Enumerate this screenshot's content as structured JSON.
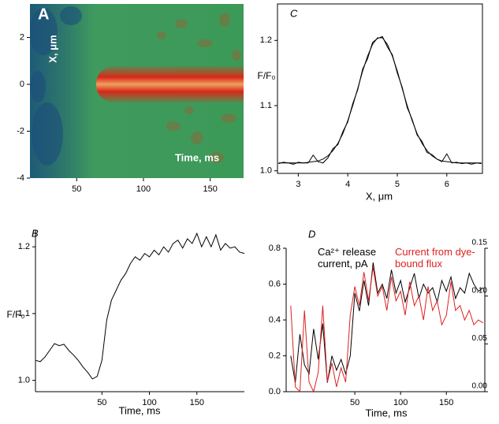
{
  "chart_data": [
    {
      "type": "heatmap",
      "panel_label": "A",
      "xlabel": "Time, ms",
      "ylabel": "X, μm",
      "xlim": [
        15,
        175
      ],
      "ylim": [
        -4,
        3.43
      ],
      "xticks": [
        50,
        100,
        150
      ],
      "yticks": [
        -4,
        -2,
        0,
        2
      ]
    },
    {
      "type": "line",
      "panel_label": "B",
      "xlabel": "Time, ms",
      "ylabel": "F/F₀",
      "color": "#000000",
      "x": [
        -20,
        -15,
        -10,
        -5,
        0,
        5,
        10,
        15,
        20,
        25,
        30,
        35,
        40,
        45,
        50,
        55,
        60,
        65,
        70,
        75,
        80,
        85,
        90,
        95,
        100,
        105,
        110,
        115,
        120,
        125,
        130,
        135,
        140,
        145,
        150,
        155,
        160,
        165,
        170,
        175,
        180,
        185,
        190,
        195,
        200
      ],
      "values": [
        1.03,
        1.028,
        1.035,
        1.045,
        1.055,
        1.052,
        1.054,
        1.045,
        1.038,
        1.03,
        1.02,
        1.012,
        1.002,
        1.006,
        1.03,
        1.09,
        1.12,
        1.135,
        1.15,
        1.16,
        1.175,
        1.185,
        1.18,
        1.19,
        1.185,
        1.195,
        1.188,
        1.2,
        1.192,
        1.205,
        1.21,
        1.198,
        1.212,
        1.205,
        1.22,
        1.2,
        1.215,
        1.2,
        1.218,
        1.195,
        1.205,
        1.198,
        1.2,
        1.192,
        1.19
      ],
      "xlim": [
        -20,
        200
      ],
      "ylim": [
        0.983,
        1.225
      ],
      "xticks": [
        50,
        100,
        150
      ],
      "yticks": [
        {
          "value": 1,
          "label": "1.0"
        },
        1.1,
        1.2
      ]
    },
    {
      "type": "line",
      "panel_label": "C",
      "xlabel": "X, μm",
      "ylabel": "F/F₀",
      "x": [
        2.6,
        2.7,
        2.8,
        2.9,
        3.0,
        3.1,
        3.2,
        3.3,
        3.4,
        3.5,
        3.6,
        3.7,
        3.8,
        3.9,
        4.0,
        4.1,
        4.2,
        4.3,
        4.4,
        4.5,
        4.6,
        4.7,
        4.8,
        4.9,
        5.0,
        5.1,
        5.2,
        5.3,
        5.4,
        5.5,
        5.6,
        5.7,
        5.8,
        5.9,
        6.0,
        6.1,
        6.2,
        6.3,
        6.4,
        6.5,
        6.6,
        6.7
      ],
      "series": [
        {
          "color": "#000000",
          "values": [
            1.012,
            1.012,
            1.012,
            1.012,
            1.012,
            1.012,
            1.013,
            1.014,
            1.015,
            1.018,
            1.023,
            1.031,
            1.042,
            1.057,
            1.077,
            1.1,
            1.126,
            1.153,
            1.176,
            1.194,
            1.204,
            1.204,
            1.194,
            1.176,
            1.153,
            1.126,
            1.1,
            1.077,
            1.057,
            1.042,
            1.031,
            1.023,
            1.018,
            1.015,
            1.014,
            1.013,
            1.012,
            1.012,
            1.012,
            1.012,
            1.012,
            1.012
          ]
        },
        {
          "color": "#000000",
          "values": [
            1.011,
            1.013,
            1.012,
            1.01,
            1.013,
            1.012,
            1.012,
            1.024,
            1.014,
            1.012,
            1.02,
            1.034,
            1.04,
            1.06,
            1.075,
            1.103,
            1.124,
            1.156,
            1.172,
            1.197,
            1.203,
            1.206,
            1.19,
            1.178,
            1.15,
            1.128,
            1.097,
            1.079,
            1.055,
            1.045,
            1.028,
            1.025,
            1.018,
            1.014,
            1.026,
            1.012,
            1.013,
            1.011,
            1.012,
            1.01,
            1.012,
            1.011
          ]
        }
      ],
      "xlim": [
        2.58,
        6.72
      ],
      "ylim": [
        0.996,
        1.256
      ],
      "xticks": [
        3,
        4,
        5,
        6
      ],
      "yticks": [
        {
          "value": 1,
          "label": "1.0"
        },
        1.1,
        1.2
      ]
    },
    {
      "type": "line",
      "panel_label": "D",
      "xlabel": "Time, ms",
      "x": [
        -20,
        -15,
        -10,
        -5,
        0,
        5,
        10,
        15,
        20,
        25,
        30,
        35,
        40,
        45,
        50,
        55,
        60,
        65,
        70,
        75,
        80,
        85,
        90,
        95,
        100,
        105,
        110,
        115,
        120,
        125,
        130,
        135,
        140,
        145,
        150,
        155,
        160,
        165,
        170,
        175,
        180,
        185,
        190
      ],
      "series": [
        {
          "name": "Ca²⁺ release current, pA",
          "color": "#000000",
          "values": [
            0.2,
            0.05,
            0.32,
            0.15,
            0.1,
            0.35,
            0.18,
            0.38,
            0.05,
            0.2,
            0.12,
            0.18,
            0.1,
            0.2,
            0.55,
            0.45,
            0.62,
            0.48,
            0.72,
            0.55,
            0.6,
            0.52,
            0.68,
            0.55,
            0.62,
            0.5,
            0.58,
            0.66,
            0.52,
            0.6,
            0.55,
            0.58,
            0.5,
            0.62,
            0.56,
            0.64,
            0.52,
            0.58,
            0.55,
            0.66,
            0.6,
            0.56,
            0.58
          ]
        },
        {
          "name": "Current from dye-bound flux",
          "color": "#e02020",
          "axis": "y2",
          "values": [
            0.09,
            0.005,
            0,
            0.085,
            0.01,
            0,
            0.02,
            0.09,
            0.01,
            0.03,
            0.005,
            0.025,
            0.01,
            0.08,
            0.11,
            0.09,
            0.125,
            0.095,
            0.13,
            0.1,
            0.11,
            0.085,
            0.12,
            0.095,
            0.105,
            0.08,
            0.115,
            0.09,
            0.1,
            0.075,
            0.11,
            0.085,
            0.095,
            0.07,
            0.08,
            0.115,
            0.085,
            0.09,
            0.075,
            0.085,
            0.07,
            0.075,
            0.072
          ]
        }
      ],
      "xlim": [
        -25,
        192
      ],
      "ylim": [
        0,
        0.8
      ],
      "y2lim": [
        0,
        0.15
      ],
      "xticks": [
        50,
        100,
        150
      ],
      "yticks": [
        {
          "value": 0,
          "label": "0.0"
        },
        0.2,
        0.4,
        0.6,
        0.8
      ],
      "y2ticks": [
        {
          "value": 0,
          "label": "0.00"
        },
        0.05,
        {
          "value": 0.1,
          "label": "0.10"
        },
        0.15
      ]
    }
  ]
}
